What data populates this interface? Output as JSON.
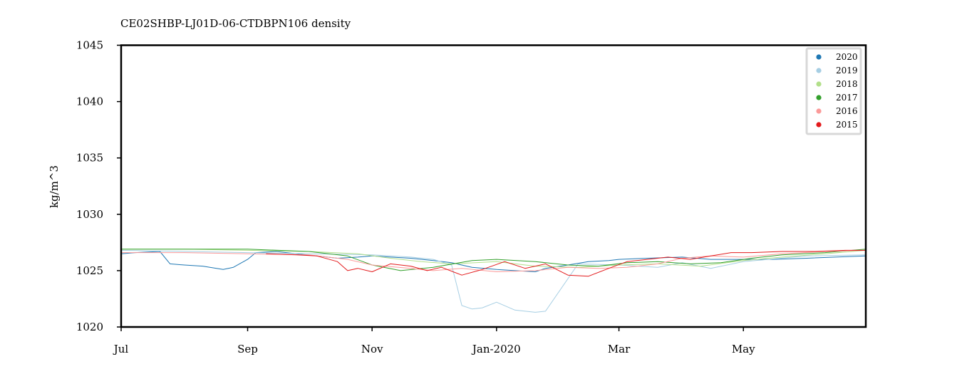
{
  "chart_data": {
    "type": "line",
    "title": "CE02SHBP-LJ01D-06-CTDBPN106 density",
    "ylabel": "kg/m^3",
    "xlabel": "",
    "x_tick_labels": [
      "Jul",
      "Sep",
      "Nov",
      "Jan-2020",
      "Mar",
      "May"
    ],
    "x_ticks": [
      "2019-07-01",
      "2019-09-01",
      "2019-11-01",
      "2020-01-01",
      "2020-03-01",
      "2020-05-01"
    ],
    "xlim": [
      "2019-07-01",
      "2020-06-30"
    ],
    "ylim": [
      1020,
      1045
    ],
    "y_ticks": [
      1020,
      1025,
      1030,
      1035,
      1040,
      1045
    ],
    "grid": false,
    "legend_position": "top-right",
    "series": [
      {
        "name": "2020",
        "color": "#1f78b4",
        "x": [
          "2019-07-01",
          "2019-07-08",
          "2019-07-20",
          "2019-07-25",
          "2019-08-01",
          "2019-08-10",
          "2019-08-20",
          "2019-08-25",
          "2019-09-01",
          "2019-09-05",
          "2019-09-15",
          "2019-09-25",
          "2019-10-05",
          "2019-10-15",
          "2019-10-25",
          "2019-11-01",
          "2019-11-10",
          "2019-11-20",
          "2019-12-01",
          "2019-12-10",
          "2019-12-20",
          "2020-01-01",
          "2020-01-10",
          "2020-01-20",
          "2020-01-25",
          "2020-02-05",
          "2020-02-15",
          "2020-02-25",
          "2020-03-01",
          "2020-03-15",
          "2020-04-01",
          "2020-04-15",
          "2020-05-01",
          "2020-05-15",
          "2020-06-01",
          "2020-06-15",
          "2020-06-30"
        ],
        "y": [
          1026.5,
          1026.6,
          1026.7,
          1025.6,
          1025.5,
          1025.4,
          1025.1,
          1025.3,
          1026.0,
          1026.6,
          1026.7,
          1026.5,
          1026.3,
          1026.1,
          1026.2,
          1026.3,
          1026.2,
          1026.1,
          1025.9,
          1025.7,
          1025.3,
          1025.1,
          1025.0,
          1024.9,
          1025.2,
          1025.5,
          1025.8,
          1025.9,
          1026.0,
          1026.1,
          1026.2,
          1026.0,
          1026.0,
          1026.0,
          1026.1,
          1026.2,
          1026.3
        ]
      },
      {
        "name": "2019",
        "color": "#a6cee3",
        "x": [
          "2019-07-01",
          "2019-08-01",
          "2019-09-01",
          "2019-10-01",
          "2019-11-01",
          "2019-11-20",
          "2019-12-01",
          "2019-12-10",
          "2019-12-15",
          "2019-12-20",
          "2019-12-25",
          "2020-01-01",
          "2020-01-10",
          "2020-01-20",
          "2020-01-25",
          "2020-02-10",
          "2020-03-01",
          "2020-03-20",
          "2020-04-01",
          "2020-04-15",
          "2020-05-01",
          "2020-06-01",
          "2020-06-30"
        ],
        "y": [
          1026.8,
          1026.7,
          1026.6,
          1026.5,
          1026.4,
          1026.2,
          1026.0,
          1025.5,
          1021.9,
          1021.6,
          1021.7,
          1022.2,
          1021.5,
          1021.3,
          1021.4,
          1025.6,
          1025.5,
          1025.3,
          1025.7,
          1025.2,
          1025.8,
          1026.3,
          1026.4
        ]
      },
      {
        "name": "2018",
        "color": "#b2df8a",
        "x": [
          "2019-07-01",
          "2019-08-01",
          "2019-09-01",
          "2019-10-01",
          "2019-10-25",
          "2019-11-10",
          "2019-11-25",
          "2019-12-10",
          "2020-01-01",
          "2020-01-20",
          "2020-02-10",
          "2020-03-01",
          "2020-03-20",
          "2020-04-10",
          "2020-05-01",
          "2020-05-20",
          "2020-06-10",
          "2020-06-30"
        ],
        "y": [
          1026.9,
          1026.9,
          1026.8,
          1026.7,
          1026.5,
          1026.1,
          1025.8,
          1025.6,
          1025.8,
          1025.4,
          1025.3,
          1025.5,
          1025.6,
          1025.4,
          1025.9,
          1026.2,
          1026.5,
          1026.8
        ]
      },
      {
        "name": "2017",
        "color": "#33a02c",
        "x": [
          "2019-07-01",
          "2019-08-01",
          "2019-09-01",
          "2019-10-01",
          "2019-10-20",
          "2019-11-01",
          "2019-11-15",
          "2019-12-01",
          "2019-12-20",
          "2020-01-01",
          "2020-01-20",
          "2020-02-05",
          "2020-02-20",
          "2020-03-05",
          "2020-03-20",
          "2020-04-05",
          "2020-04-20",
          "2020-05-05",
          "2020-05-20",
          "2020-06-10",
          "2020-06-30"
        ],
        "y": [
          1026.9,
          1026.9,
          1026.9,
          1026.7,
          1026.3,
          1025.5,
          1025.0,
          1025.3,
          1025.9,
          1026.0,
          1025.8,
          1025.5,
          1025.4,
          1025.7,
          1025.8,
          1025.6,
          1025.7,
          1026.1,
          1026.4,
          1026.6,
          1026.9
        ]
      },
      {
        "name": "2016",
        "color": "#fb9a99",
        "x": [
          "2019-07-01",
          "2019-08-01",
          "2019-09-01",
          "2019-10-01",
          "2019-10-20",
          "2019-11-01",
          "2019-11-20",
          "2019-12-01",
          "2019-12-15",
          "2020-01-01",
          "2020-01-20",
          "2020-02-05",
          "2020-02-20",
          "2020-03-05",
          "2020-03-20",
          "2020-04-01",
          "2020-04-15",
          "2020-05-01",
          "2020-05-20",
          "2020-06-10",
          "2020-06-30"
        ],
        "y": [
          1026.6,
          1026.6,
          1026.5,
          1026.4,
          1026.0,
          1025.5,
          1025.2,
          1025.0,
          1025.2,
          1024.9,
          1025.0,
          1025.3,
          1025.2,
          1025.3,
          1025.6,
          1026.1,
          1026.3,
          1026.2,
          1026.5,
          1026.7,
          1026.8
        ]
      },
      {
        "name": "2015",
        "color": "#e31a1c",
        "x": [
          "2019-09-10",
          "2019-09-25",
          "2019-10-05",
          "2019-10-15",
          "2019-10-20",
          "2019-10-25",
          "2019-11-01",
          "2019-11-10",
          "2019-11-20",
          "2019-11-28",
          "2019-12-05",
          "2019-12-15",
          "2019-12-25",
          "2020-01-05",
          "2020-01-15",
          "2020-01-25",
          "2020-02-05",
          "2020-02-15",
          "2020-02-25",
          "2020-03-05",
          "2020-03-15",
          "2020-03-25",
          "2020-04-05",
          "2020-04-15",
          "2020-04-25",
          "2020-05-05",
          "2020-05-20",
          "2020-06-05",
          "2020-06-20",
          "2020-06-30"
        ],
        "y": [
          1026.5,
          1026.4,
          1026.3,
          1025.8,
          1025.0,
          1025.2,
          1024.9,
          1025.6,
          1025.4,
          1025.0,
          1025.3,
          1024.6,
          1025.1,
          1025.8,
          1025.2,
          1025.6,
          1024.6,
          1024.5,
          1025.2,
          1025.8,
          1026.0,
          1026.2,
          1026.0,
          1026.3,
          1026.6,
          1026.6,
          1026.7,
          1026.7,
          1026.8,
          1026.8
        ]
      }
    ]
  }
}
